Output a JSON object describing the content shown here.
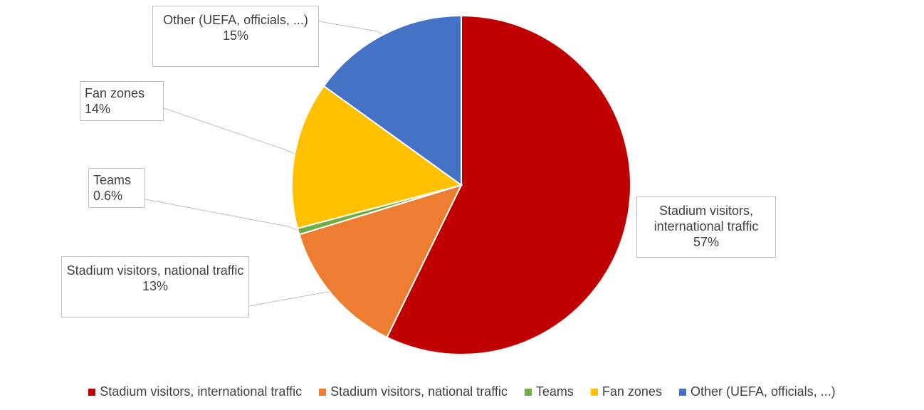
{
  "chart_data": {
    "type": "pie",
    "legend_position": "bottom",
    "slices": [
      {
        "name": "Stadium visitors, international traffic",
        "value": 57,
        "label": "57%",
        "color": "#C00000"
      },
      {
        "name": "Stadium visitors, national traffic",
        "value": 13,
        "label": "13%",
        "color": "#ED7D31"
      },
      {
        "name": "Teams",
        "value": 0.6,
        "label": "0.6%",
        "color": "#70AD47"
      },
      {
        "name": "Fan zones",
        "value": 14,
        "label": "14%",
        "color": "#FFC000"
      },
      {
        "name": "Other (UEFA, officials, ...)",
        "value": 15,
        "label": "15%",
        "color": "#4472C4"
      }
    ]
  }
}
